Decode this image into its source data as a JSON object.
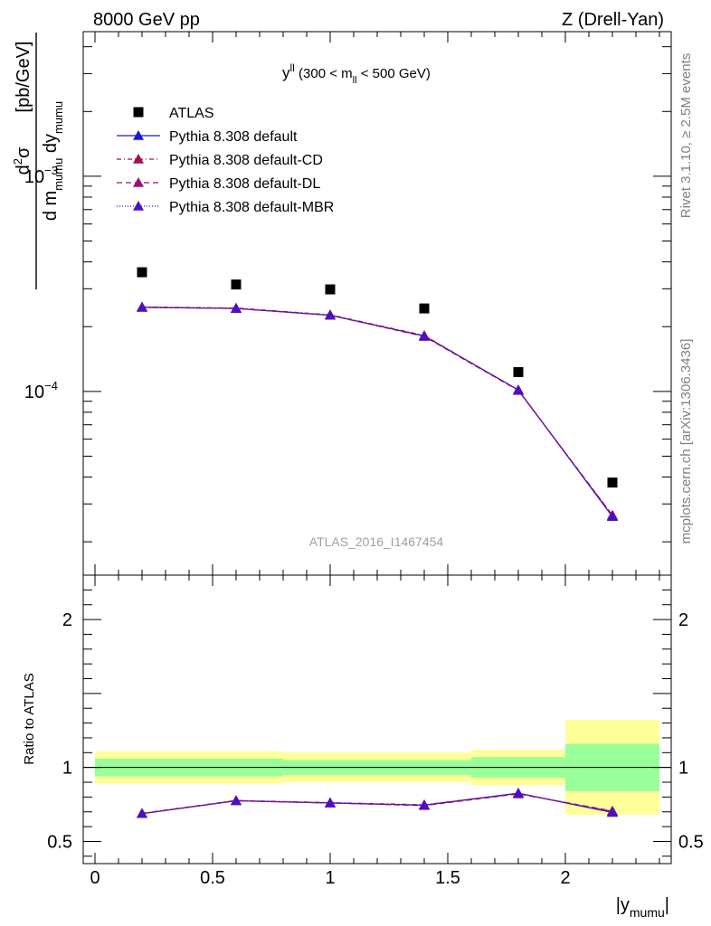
{
  "header": {
    "left": "8000 GeV pp",
    "right": "Z (Drell-Yan)"
  },
  "side_text": {
    "rivet": "Rivet 3.1.10, ≥ 2.5M events",
    "mcplots": "mcplots.cern.ch [arXiv:1306.3436]"
  },
  "watermark": "ATLAS_2016_I1467454",
  "chart_data": {
    "type": "line",
    "title": "y^ll (300 < m_ll < 500 GeV)",
    "title_parts": {
      "y": "y",
      "y_sup": "ll",
      "range_a": "(300 < m",
      "m_sub": "ll",
      "range_b": "< 500 GeV)"
    },
    "ylabel": "d²σ / d m_mumu dy_mumu [pb/GeV]",
    "ylabel_parts": {
      "num": "d",
      "num_sup": "2",
      "num_sigma": "σ",
      "den_a": "d m",
      "den_sub_a": "mumu",
      "den_b": "dy",
      "den_sub_b": "mumu",
      "unit": "[pb/GeV]"
    },
    "xlabel": "|y_mumu|",
    "xlabel_parts": {
      "a": "|y",
      "sub": "mumu",
      "b": "|"
    },
    "ratio_ylabel": "Ratio to ATLAS",
    "y_scale": "log",
    "ylim": [
      1.4e-05,
      0.0047
    ],
    "xlim": [
      -0.05,
      2.45
    ],
    "ratio_ylim": [
      0.35,
      2.3
    ],
    "x_ticks": [
      {
        "v": 0,
        "label": "0"
      },
      {
        "v": 0.5,
        "label": "0.5"
      },
      {
        "v": 1,
        "label": "1"
      },
      {
        "v": 1.5,
        "label": "1.5"
      },
      {
        "v": 2,
        "label": "2"
      }
    ],
    "y_ticks": [
      {
        "v": 0.001,
        "base": "10",
        "exp": "−3"
      },
      {
        "v": 0.0001,
        "base": "10",
        "exp": "−4"
      }
    ],
    "ratio_ticks": [
      {
        "v": 0.5,
        "label": "0.5"
      },
      {
        "v": 1,
        "label": "1"
      },
      {
        "v": 2,
        "label": "2"
      }
    ],
    "x": [
      0.2,
      0.6,
      1.0,
      1.4,
      1.8,
      2.2
    ],
    "bin_edges": [
      0,
      0.4,
      0.8,
      1.2,
      1.6,
      2.0,
      2.4
    ],
    "data": {
      "name": "ATLAS",
      "values": [
        0.000358,
        0.000314,
        0.000298,
        0.000243,
        0.000123,
        3.77e-05
      ],
      "band_inner": [
        [
          0.94,
          1.06
        ],
        [
          0.94,
          1.06
        ],
        [
          0.95,
          1.05
        ],
        [
          0.95,
          1.05
        ],
        [
          0.93,
          1.07
        ],
        [
          0.84,
          1.16
        ]
      ],
      "band_outer": [
        [
          0.89,
          1.11
        ],
        [
          0.89,
          1.11
        ],
        [
          0.9,
          1.1
        ],
        [
          0.9,
          1.1
        ],
        [
          0.88,
          1.12
        ],
        [
          0.68,
          1.32
        ]
      ]
    },
    "series": [
      {
        "name": "Pythia 8.308 default",
        "color": "#1a1acc",
        "dash": "",
        "values": [
          0.000246,
          0.000243,
          0.000226,
          0.000181,
          0.0001016,
          2.62e-05
        ]
      },
      {
        "name": "Pythia 8.308 default-CD",
        "color": "#a01050",
        "dash": "5,3,1,3",
        "values": [
          0.000247,
          0.000244,
          0.000227,
          0.000182,
          0.0001012,
          2.65e-05
        ]
      },
      {
        "name": "Pythia 8.308 default-DL",
        "color": "#a01070",
        "dash": "6,4",
        "values": [
          0.000246,
          0.000243,
          0.000226,
          0.00018,
          0.000101,
          2.66e-05
        ]
      },
      {
        "name": "Pythia 8.308 default-MBR",
        "color": "#4a10c8",
        "dash": "1,2",
        "values": [
          0.000246,
          0.000243,
          0.000226,
          0.000181,
          0.0001016,
          2.63e-05
        ]
      }
    ],
    "ratios": [
      [
        0.688,
        0.775,
        0.76,
        0.745,
        0.826,
        0.696
      ],
      [
        0.69,
        0.777,
        0.762,
        0.748,
        0.823,
        0.703
      ],
      [
        0.688,
        0.775,
        0.76,
        0.742,
        0.821,
        0.706
      ],
      [
        0.688,
        0.775,
        0.76,
        0.745,
        0.826,
        0.698
      ]
    ],
    "colors": {
      "band_inner": "#99ff99",
      "band_outer": "#ffff99",
      "marker": "#000000"
    }
  }
}
